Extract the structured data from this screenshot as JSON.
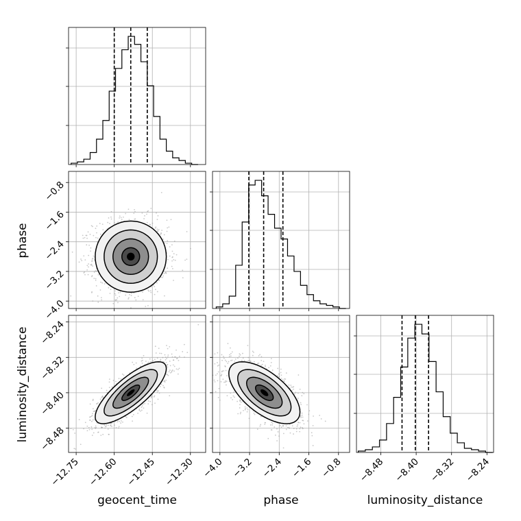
{
  "chart_data": {
    "type": "corner",
    "parameters": [
      {
        "name": "geocent_time",
        "label": "geocent_time",
        "range": [
          -12.78,
          -12.24
        ],
        "ticks": [
          -12.75,
          -12.6,
          -12.45,
          -12.3
        ],
        "tick_labels": [
          "−12.75",
          "−12.60",
          "−12.45",
          "−12.30"
        ],
        "quantiles": [
          -12.6,
          -12.535,
          -12.47
        ],
        "hist": {
          "bin_edges": [
            -12.77,
            -12.745,
            -12.72,
            -12.695,
            -12.67,
            -12.645,
            -12.62,
            -12.595,
            -12.57,
            -12.545,
            -12.52,
            -12.495,
            -12.47,
            -12.445,
            -12.42,
            -12.395,
            -12.37,
            -12.345,
            -12.32,
            -12.295,
            -12.27
          ],
          "counts": [
            1,
            2,
            4,
            9,
            19,
            33,
            55,
            72,
            86,
            96,
            90,
            77,
            59,
            36,
            19,
            10,
            5,
            3,
            1,
            0
          ]
        }
      },
      {
        "name": "phase",
        "label": "phase",
        "range": [
          -4.2,
          -0.5
        ],
        "ticks": [
          -4.0,
          -3.2,
          -2.4,
          -1.6,
          -0.8
        ],
        "tick_labels": [
          "−4.0",
          "−3.2",
          "−2.4",
          "−1.6",
          "−0.8"
        ],
        "quantiles": [
          -3.22,
          -2.82,
          -2.3
        ],
        "hist": {
          "bin_edges": [
            -4.1,
            -3.925,
            -3.75,
            -3.575,
            -3.4,
            -3.225,
            -3.05,
            -2.875,
            -2.7,
            -2.525,
            -2.35,
            -2.175,
            -2.0,
            -1.825,
            -1.65,
            -1.475,
            -1.3,
            -1.125,
            -0.95,
            -0.775,
            -0.6
          ],
          "counts": [
            1,
            3,
            8,
            28,
            56,
            80,
            83,
            73,
            61,
            52,
            45,
            34,
            24,
            15,
            9,
            5,
            3,
            2,
            1,
            0
          ]
        }
      },
      {
        "name": "luminosity_distance",
        "label": "luminosity_distance",
        "range": [
          -8.535,
          -8.225
        ],
        "ticks": [
          -8.48,
          -8.4,
          -8.32,
          -8.24
        ],
        "tick_labels": [
          "−8.48",
          "−8.40",
          "−8.32",
          "−8.24"
        ],
        "quantiles": [
          -8.432,
          -8.402,
          -8.372
        ],
        "hist": {
          "bin_edges": [
            -8.531,
            -8.515,
            -8.499,
            -8.483,
            -8.467,
            -8.451,
            -8.435,
            -8.419,
            -8.403,
            -8.387,
            -8.371,
            -8.355,
            -8.339,
            -8.323,
            -8.307,
            -8.291,
            -8.275,
            -8.259,
            -8.243,
            -8.227
          ],
          "counts": [
            1,
            2,
            4,
            9,
            21,
            40,
            62,
            83,
            93,
            86,
            66,
            44,
            26,
            14,
            7,
            3,
            2,
            1,
            0
          ]
        }
      }
    ],
    "pairs": [
      {
        "x": "geocent_time",
        "y": "phase",
        "mean": [
          -12.535,
          -2.8
        ],
        "std": [
          0.07,
          0.48
        ],
        "correlation": 0.0
      },
      {
        "x": "geocent_time",
        "y": "luminosity_distance",
        "mean": [
          -12.535,
          -8.4
        ],
        "std": [
          0.07,
          0.035
        ],
        "correlation": 0.78
      },
      {
        "x": "phase",
        "y": "luminosity_distance",
        "mean": [
          -2.8,
          -8.4
        ],
        "std": [
          0.48,
          0.035
        ],
        "correlation": -0.62
      }
    ],
    "contour_levels_sigma": [
      0.5,
      1.0,
      1.5,
      2.0
    ],
    "grid": true,
    "quantile_line_style": "dashed"
  }
}
